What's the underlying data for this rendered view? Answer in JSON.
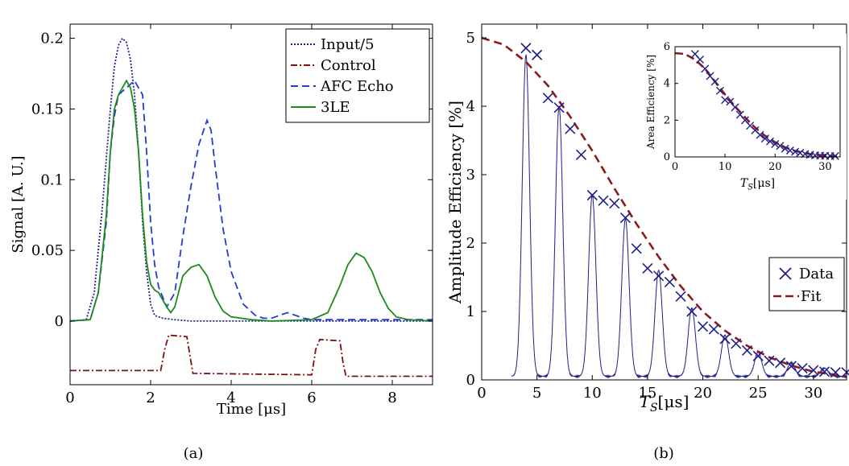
{
  "chart_data": [
    {
      "type": "line",
      "panel_label": "(a)",
      "xlabel": "Time [μs]",
      "ylabel": "Signal [A. U.]",
      "xlim": [
        0,
        9
      ],
      "ylim": [
        -0.045,
        0.21
      ],
      "xticks": [
        0,
        2,
        4,
        6,
        8
      ],
      "yticks": [
        0,
        0.05,
        0.1,
        0.15,
        0.2
      ],
      "ytick_labels": [
        "0",
        "0.05",
        "0.1",
        "0.15",
        "0.2"
      ],
      "legend_position": "top-right",
      "grid": false,
      "series": [
        {
          "name": "Input/5",
          "color": "#1f1f8a",
          "dash": "2,2",
          "x": [
            0,
            0.4,
            0.6,
            0.8,
            1.0,
            1.1,
            1.2,
            1.3,
            1.4,
            1.5,
            1.6,
            1.7,
            1.8,
            1.9,
            2.0,
            2.1,
            2.3,
            2.6,
            3.0,
            4.0,
            5.0,
            6.0,
            7.0,
            8.0,
            9.0
          ],
          "y": [
            0,
            0.001,
            0.02,
            0.08,
            0.15,
            0.18,
            0.195,
            0.2,
            0.197,
            0.185,
            0.16,
            0.12,
            0.07,
            0.035,
            0.012,
            0.004,
            0.002,
            0.001,
            0,
            0,
            0,
            0,
            0,
            0,
            0
          ]
        },
        {
          "name": "Control",
          "color": "#7f1010",
          "dash": "8,3,2,3",
          "x": [
            0,
            2.25,
            2.35,
            2.45,
            2.9,
            2.98,
            3.05,
            6.0,
            6.1,
            6.2,
            6.7,
            6.78,
            6.85,
            9.0
          ],
          "y": [
            -0.035,
            -0.035,
            -0.02,
            -0.01,
            -0.011,
            -0.025,
            -0.037,
            -0.038,
            -0.02,
            -0.013,
            -0.014,
            -0.03,
            -0.039,
            -0.039
          ]
        },
        {
          "name": "AFC Echo",
          "color": "#1f3bd9",
          "dash": "9,5",
          "x": [
            0,
            0.5,
            0.7,
            0.9,
            1.0,
            1.1,
            1.2,
            1.4,
            1.6,
            1.8,
            1.9,
            2.0,
            2.1,
            2.2,
            2.4,
            2.6,
            2.8,
            3.0,
            3.2,
            3.4,
            3.5,
            3.6,
            3.8,
            4.0,
            4.3,
            4.6,
            4.8,
            5.0,
            5.2,
            5.4,
            5.6,
            5.8,
            6.0,
            6.5,
            7.0,
            8.0,
            9.0
          ],
          "y": [
            0,
            0.001,
            0.02,
            0.07,
            0.12,
            0.145,
            0.16,
            0.165,
            0.17,
            0.16,
            0.12,
            0.07,
            0.04,
            0.024,
            0.01,
            0.02,
            0.06,
            0.095,
            0.125,
            0.142,
            0.135,
            0.11,
            0.065,
            0.035,
            0.012,
            0.004,
            0.002,
            0.002,
            0.004,
            0.006,
            0.004,
            0.002,
            0.001,
            0.001,
            0.001,
            0.001,
            0.001
          ]
        },
        {
          "name": "3LE",
          "color": "#1d8a1d",
          "dash": "",
          "x": [
            0,
            0.5,
            0.7,
            0.9,
            1.0,
            1.1,
            1.2,
            1.3,
            1.4,
            1.5,
            1.6,
            1.7,
            1.8,
            1.9,
            2.0,
            2.1,
            2.2,
            2.4,
            2.5,
            2.6,
            2.8,
            3.0,
            3.2,
            3.4,
            3.6,
            3.8,
            4.0,
            4.5,
            5.0,
            6.0,
            6.4,
            6.7,
            6.9,
            7.1,
            7.3,
            7.5,
            7.7,
            7.9,
            8.1,
            8.4,
            9.0
          ],
          "y": [
            0,
            0.001,
            0.02,
            0.075,
            0.12,
            0.15,
            0.16,
            0.165,
            0.17,
            0.165,
            0.15,
            0.12,
            0.075,
            0.042,
            0.026,
            0.022,
            0.02,
            0.01,
            0.006,
            0.01,
            0.032,
            0.038,
            0.04,
            0.032,
            0.017,
            0.007,
            0.003,
            0.001,
            0,
            0.001,
            0.006,
            0.025,
            0.04,
            0.048,
            0.045,
            0.035,
            0.02,
            0.009,
            0.003,
            0.001,
            0
          ]
        }
      ]
    },
    {
      "type": "scatter",
      "panel_label": "(b)",
      "xlabel": "T_S[μs]",
      "ylabel": "Amplitude Efficiency [%]",
      "xlim": [
        0,
        33
      ],
      "ylim": [
        0,
        5.2
      ],
      "xticks": [
        0,
        5,
        10,
        15,
        20,
        25,
        30
      ],
      "yticks": [
        0,
        1,
        2,
        3,
        4,
        5
      ],
      "legend_position": "center-right",
      "grid": false,
      "series": [
        {
          "name": "Data",
          "color": "#1f1f8a",
          "marker": "x",
          "x": [
            4,
            5,
            6,
            7,
            8,
            9,
            10,
            11,
            12,
            13,
            14,
            15,
            16,
            17,
            18,
            19,
            20,
            21,
            22,
            23,
            24,
            25,
            26,
            27,
            28,
            29,
            30,
            31,
            32,
            33
          ],
          "y": [
            4.85,
            4.75,
            4.12,
            3.98,
            3.67,
            3.29,
            2.7,
            2.62,
            2.58,
            2.37,
            1.92,
            1.63,
            1.52,
            1.43,
            1.22,
            1.0,
            0.78,
            0.74,
            0.6,
            0.53,
            0.43,
            0.35,
            0.28,
            0.25,
            0.2,
            0.17,
            0.14,
            0.12,
            0.11,
            0.11
          ]
        },
        {
          "name": "Fit",
          "color": "#8b1a1a",
          "dash": "10,6",
          "x": [
            0,
            2,
            4,
            6,
            8,
            10,
            12,
            14,
            16,
            18,
            20,
            22,
            24,
            26,
            28,
            30,
            33
          ],
          "y": [
            5.0,
            4.9,
            4.65,
            4.3,
            3.85,
            3.35,
            2.8,
            2.28,
            1.8,
            1.37,
            1.0,
            0.72,
            0.5,
            0.33,
            0.21,
            0.12,
            0.05
          ]
        },
        {
          "name": "",
          "color": "#1f1f8a",
          "peaks": {
            "centers": [
              4,
              7,
              10,
              13,
              16,
              19,
              22,
              25,
              28,
              31
            ],
            "heights": [
              4.7,
              3.95,
              2.65,
              2.3,
              1.55,
              1.0,
              0.6,
              0.35,
              0.2,
              0.12
            ],
            "baseline": 0.06,
            "x_start": 2.7
          }
        }
      ],
      "inset": {
        "xlabel": "T_S[μs]",
        "ylabel": "Area Efficiency [%]",
        "xlim": [
          0,
          33
        ],
        "ylim": [
          0,
          6
        ],
        "xticks": [
          0,
          10,
          20,
          30
        ],
        "yticks": [
          0,
          2,
          4,
          6
        ],
        "data": {
          "x": [
            4,
            5,
            6,
            7,
            8,
            9,
            10,
            11,
            12,
            13,
            14,
            15,
            16,
            17,
            18,
            19,
            20,
            21,
            22,
            23,
            24,
            25,
            26,
            27,
            28,
            29,
            30,
            31,
            32
          ],
          "y": [
            5.6,
            5.3,
            4.8,
            4.4,
            4.1,
            3.6,
            3.1,
            3.0,
            2.7,
            2.3,
            2.0,
            1.7,
            1.45,
            1.2,
            1.0,
            0.85,
            0.7,
            0.6,
            0.45,
            0.35,
            0.28,
            0.22,
            0.16,
            0.12,
            0.09,
            0.07,
            0.06,
            0.05,
            0.05
          ]
        },
        "fit": {
          "x": [
            0,
            2,
            4,
            6,
            8,
            10,
            12,
            14,
            16,
            18,
            20,
            22,
            24,
            26,
            28,
            30,
            33
          ],
          "y": [
            5.65,
            5.6,
            5.3,
            4.8,
            4.1,
            3.4,
            2.75,
            2.15,
            1.6,
            1.15,
            0.8,
            0.52,
            0.33,
            0.2,
            0.12,
            0.07,
            0.05
          ]
        }
      }
    }
  ]
}
